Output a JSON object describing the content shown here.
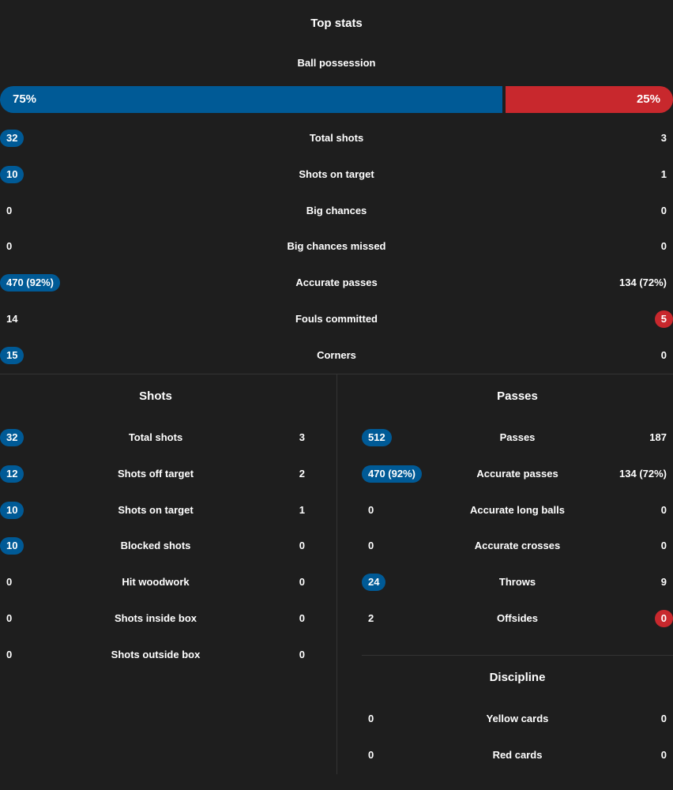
{
  "colors": {
    "home": "#005a96",
    "away": "#c8282d",
    "background": "#1e1e1e",
    "divider": "#333333"
  },
  "top_stats": {
    "title": "Top stats",
    "possession": {
      "label": "Ball possession",
      "home": "75%",
      "away": "25%",
      "home_fraction": 0.75
    },
    "rows": [
      {
        "label": "Total shots",
        "home": "32",
        "away": "3",
        "highlight": "home"
      },
      {
        "label": "Shots on target",
        "home": "10",
        "away": "1",
        "highlight": "home"
      },
      {
        "label": "Big chances",
        "home": "0",
        "away": "0",
        "highlight": "none"
      },
      {
        "label": "Big chances missed",
        "home": "0",
        "away": "0",
        "highlight": "none"
      },
      {
        "label": "Accurate passes",
        "home": "470 (92%)",
        "away": "134 (72%)",
        "highlight": "home"
      },
      {
        "label": "Fouls committed",
        "home": "14",
        "away": "5",
        "highlight": "away"
      },
      {
        "label": "Corners",
        "home": "15",
        "away": "0",
        "highlight": "home"
      }
    ]
  },
  "shots": {
    "title": "Shots",
    "rows": [
      {
        "label": "Total shots",
        "home": "32",
        "away": "3",
        "highlight": "home"
      },
      {
        "label": "Shots off target",
        "home": "12",
        "away": "2",
        "highlight": "home"
      },
      {
        "label": "Shots on target",
        "home": "10",
        "away": "1",
        "highlight": "home"
      },
      {
        "label": "Blocked shots",
        "home": "10",
        "away": "0",
        "highlight": "home"
      },
      {
        "label": "Hit woodwork",
        "home": "0",
        "away": "0",
        "highlight": "none"
      },
      {
        "label": "Shots inside box",
        "home": "0",
        "away": "0",
        "highlight": "none"
      },
      {
        "label": "Shots outside box",
        "home": "0",
        "away": "0",
        "highlight": "none"
      }
    ]
  },
  "passes": {
    "title": "Passes",
    "rows": [
      {
        "label": "Passes",
        "home": "512",
        "away": "187",
        "highlight": "home"
      },
      {
        "label": "Accurate passes",
        "home": "470 (92%)",
        "away": "134 (72%)",
        "highlight": "home"
      },
      {
        "label": "Accurate long balls",
        "home": "0",
        "away": "0",
        "highlight": "none"
      },
      {
        "label": "Accurate crosses",
        "home": "0",
        "away": "0",
        "highlight": "none"
      },
      {
        "label": "Throws",
        "home": "24",
        "away": "9",
        "highlight": "home"
      },
      {
        "label": "Offsides",
        "home": "2",
        "away": "0",
        "highlight": "away"
      }
    ]
  },
  "discipline": {
    "title": "Discipline",
    "rows": [
      {
        "label": "Yellow cards",
        "home": "0",
        "away": "0",
        "highlight": "none"
      },
      {
        "label": "Red cards",
        "home": "0",
        "away": "0",
        "highlight": "none"
      }
    ]
  }
}
